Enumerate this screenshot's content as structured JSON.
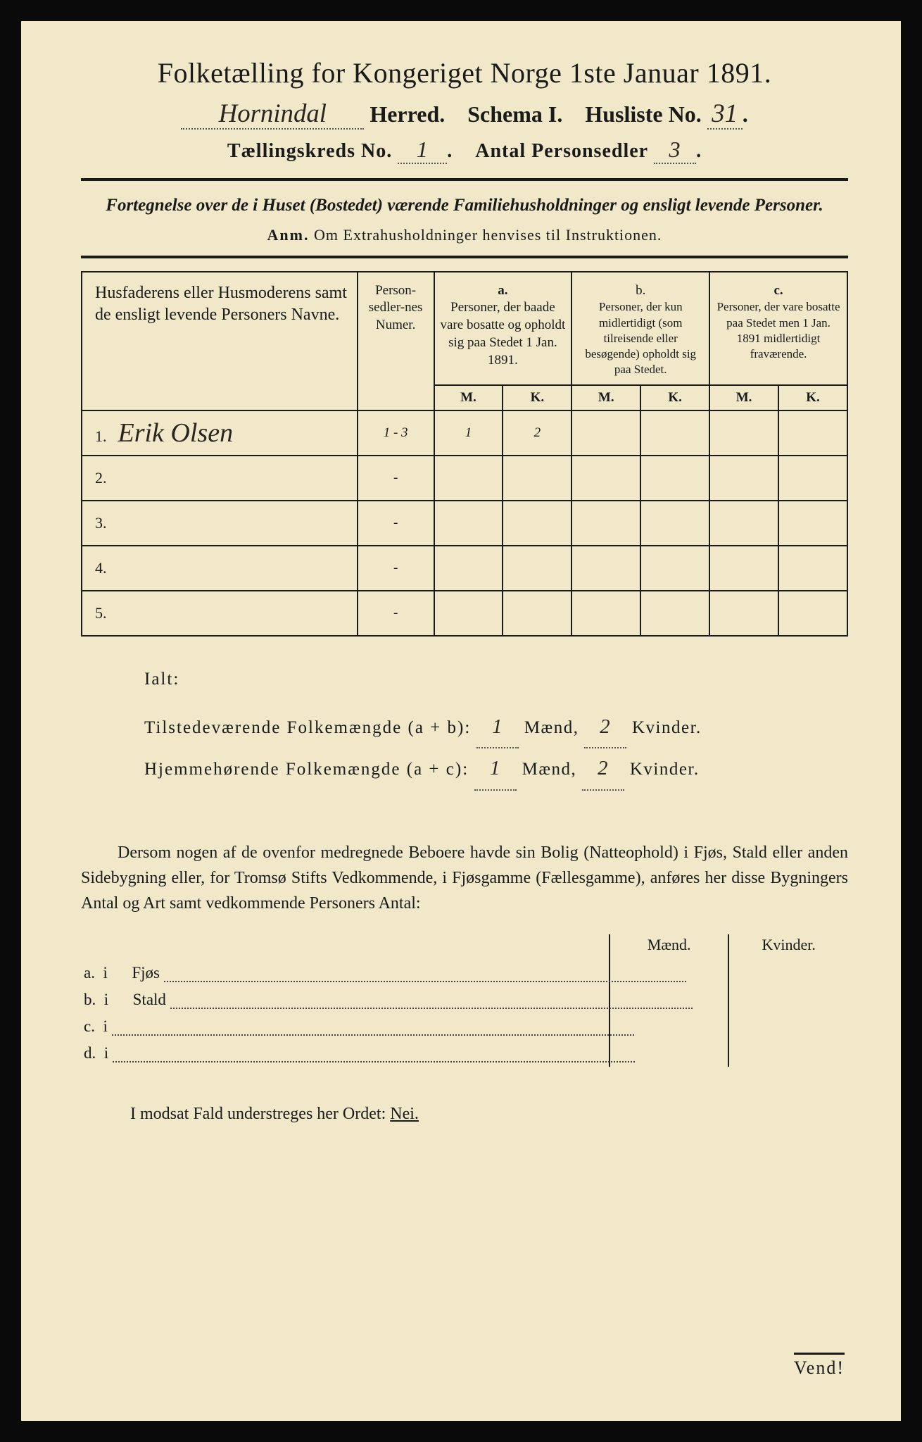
{
  "colors": {
    "page_bg": "#f0e8c8",
    "ink": "#1a1a1a",
    "frame_bg": "#0a0a0a",
    "handwriting": "#2a2520"
  },
  "typography": {
    "body_family": "Times New Roman",
    "handwritten_family": "Brush Script MT",
    "title_pt": 40,
    "line2_pt": 32,
    "line3_pt": 28,
    "subtitle_pt": 25,
    "table_pt": 19,
    "totals_pt": 25,
    "para_pt": 24
  },
  "header": {
    "title": "Folketælling for Kongeriget Norge 1ste Januar 1891.",
    "herred_value": "Hornindal",
    "herred_label": "Herred.",
    "schema_label": "Schema I.",
    "husliste_label": "Husliste No.",
    "husliste_value": "31",
    "kreds_label": "Tællingskreds No.",
    "kreds_value": "1",
    "antal_label": "Antal Personsedler",
    "antal_value": "3"
  },
  "subtitle": {
    "line1": "Fortegnelse over de i Huset (Bostedet) værende Familiehusholdninger og ensligt levende Personer.",
    "line2_prefix": "Anm.",
    "line2_rest": "Om Extrahusholdninger henvises til Instruktionen."
  },
  "table": {
    "columns": {
      "name": "Husfaderens eller Husmoderens samt de ensligt levende Personers Navne.",
      "num": "Person-sedler-nes Numer.",
      "a_label": "a.",
      "a_text": "Personer, der baade vare bosatte og opholdt sig paa Stedet 1 Jan. 1891.",
      "b_label": "b.",
      "b_text": "Personer, der kun midlertidigt (som tilreisende eller besøgende) opholdt sig paa Stedet.",
      "c_label": "c.",
      "c_text": "Personer, der vare bosatte paa Stedet men 1 Jan. 1891 midlertidigt fraværende.",
      "m": "M.",
      "k": "K."
    },
    "rows": [
      {
        "n": "1.",
        "name": "Erik Olsen",
        "num": "1 - 3",
        "a_m": "1",
        "a_k": "2",
        "b_m": "",
        "b_k": "",
        "c_m": "",
        "c_k": ""
      },
      {
        "n": "2.",
        "name": "",
        "num": "-",
        "a_m": "",
        "a_k": "",
        "b_m": "",
        "b_k": "",
        "c_m": "",
        "c_k": ""
      },
      {
        "n": "3.",
        "name": "",
        "num": "-",
        "a_m": "",
        "a_k": "",
        "b_m": "",
        "b_k": "",
        "c_m": "",
        "c_k": ""
      },
      {
        "n": "4.",
        "name": "",
        "num": "-",
        "a_m": "",
        "a_k": "",
        "b_m": "",
        "b_k": "",
        "c_m": "",
        "c_k": ""
      },
      {
        "n": "5.",
        "name": "",
        "num": "-",
        "a_m": "",
        "a_k": "",
        "b_m": "",
        "b_k": "",
        "c_m": "",
        "c_k": ""
      }
    ]
  },
  "totals": {
    "ialt": "Ialt:",
    "line1_a": "Tilstedeværende Folkemængde (a + b):",
    "line1_maend": "1",
    "line1_mid": "Mænd,",
    "line1_kvinder": "2",
    "line1_end": "Kvinder.",
    "line2_a": "Hjemmehørende Folkemængde (a + c):",
    "line2_maend": "1",
    "line2_mid": "Mænd,",
    "line2_kvinder": "2",
    "line2_end": "Kvinder."
  },
  "paragraph": "Dersom nogen af de ovenfor medregnede Beboere havde sin Bolig (Natteophold) i Fjøs, Stald eller anden Sidebygning eller, for Tromsø Stifts Vedkommende, i Fjøsgamme (Fællesgamme), anføres her disse Bygningers Antal og Art samt vedkommende Personers Antal:",
  "side": {
    "head_m": "Mænd.",
    "head_k": "Kvinder.",
    "rows": [
      {
        "label": "a.  i      Fjøs"
      },
      {
        "label": "b.  i      Stald"
      },
      {
        "label": "c.  i"
      },
      {
        "label": "d.  i"
      }
    ]
  },
  "nei_line": {
    "prefix": "I modsat Fald understreges her Ordet:",
    "word": "Nei."
  },
  "vend": "Vend!"
}
